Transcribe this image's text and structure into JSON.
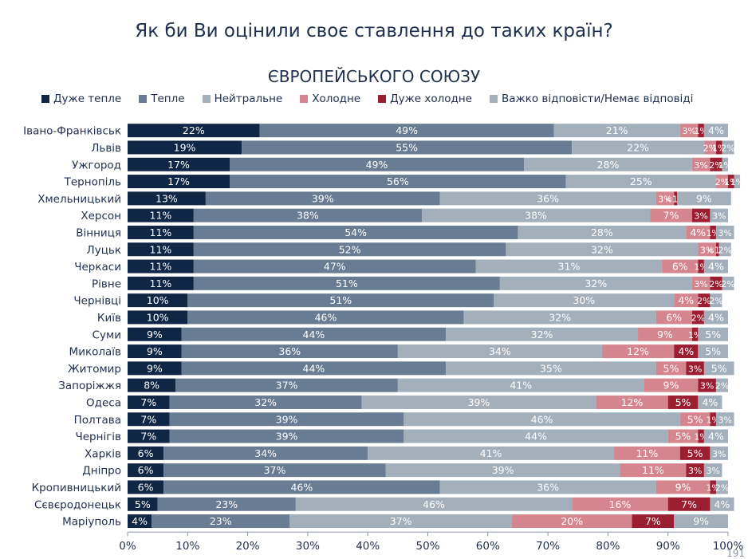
{
  "page": {
    "title": "Як би Ви оцінили своє ставлення до таких країн?",
    "page_number": "191"
  },
  "chart_data": {
    "type": "bar",
    "orientation": "horizontal",
    "stacked": true,
    "normalized": true,
    "title": "ЄВРОПЕЙСЬКОГО СОЮЗУ",
    "xlim": [
      0,
      100
    ],
    "x_ticks": [
      "0%",
      "10%",
      "20%",
      "30%",
      "40%",
      "50%",
      "60%",
      "70%",
      "80%",
      "90%",
      "100%"
    ],
    "legend_position": "top",
    "categories": [
      "Івано-Франківськ",
      "Львів",
      "Ужгород",
      "Тернопіль",
      "Хмельницький",
      "Херсон",
      "Вінниця",
      "Луцьк",
      "Черкаси",
      "Рівне",
      "Чернівці",
      "Київ",
      "Суми",
      "Миколаїв",
      "Житомир",
      "Запоріжжя",
      "Одеса",
      "Полтава",
      "Чернігів",
      "Харків",
      "Дніпро",
      "Кропивницький",
      "Сєвєродонецьк",
      "Маріуполь"
    ],
    "series": [
      {
        "name": "Дуже тепле",
        "color": "#0f2645",
        "label_color": "#ffffff",
        "values": [
          22,
          19,
          17,
          17,
          13,
          11,
          11,
          11,
          11,
          11,
          10,
          10,
          9,
          9,
          9,
          8,
          7,
          7,
          7,
          6,
          6,
          6,
          5,
          4
        ],
        "labels": [
          "22%",
          "19%",
          "17%",
          "17%",
          "13%",
          "11%",
          "11%",
          "11%",
          "11%",
          "11%",
          "10%",
          "10%",
          "9%",
          "9%",
          "9%",
          "8%",
          "7%",
          "7%",
          "7%",
          "6%",
          "6%",
          "6%",
          "5%",
          "4%"
        ]
      },
      {
        "name": "Тепле",
        "color": "#687c93",
        "label_color": "#ffffff",
        "values": [
          49,
          55,
          49,
          56,
          39,
          38,
          54,
          52,
          47,
          51,
          51,
          46,
          44,
          36,
          44,
          37,
          32,
          39,
          39,
          34,
          37,
          46,
          23,
          23
        ],
        "labels": [
          "49%",
          "55%",
          "49%",
          "56%",
          "39%",
          "38%",
          "54%",
          "52%",
          "47%",
          "51%",
          "51%",
          "46%",
          "44%",
          "36%",
          "44%",
          "37%",
          "32%",
          "39%",
          "39%",
          "34%",
          "37%",
          "46%",
          "23%",
          "23%"
        ]
      },
      {
        "name": "Нейтральне",
        "color": "#a3afbb",
        "label_color": "#ffffff",
        "values": [
          21,
          22,
          28,
          25,
          36,
          38,
          28,
          32,
          31,
          32,
          30,
          32,
          32,
          34,
          35,
          41,
          39,
          46,
          44,
          41,
          39,
          36,
          46,
          37
        ],
        "labels": [
          "21%",
          "22%",
          "28%",
          "25%",
          "36%",
          "38%",
          "28%",
          "32%",
          "31%",
          "32%",
          "30%",
          "32%",
          "32%",
          "34%",
          "35%",
          "41%",
          "39%",
          "46%",
          "44%",
          "41%",
          "39%",
          "36%",
          "46%",
          "37%"
        ]
      },
      {
        "name": "Холодне",
        "color": "#d5858e",
        "label_color": "#ffffff",
        "values": [
          3,
          2,
          3,
          2,
          3,
          7,
          4,
          3,
          6,
          3,
          4,
          6,
          9,
          12,
          5,
          9,
          12,
          5,
          5,
          11,
          11,
          9,
          16,
          20
        ],
        "labels": [
          "3%",
          "2%",
          "3%",
          "2%",
          "3%",
          "7%",
          "4%",
          "3%",
          "6%",
          "3%",
          "4%",
          "6%",
          "9%",
          "12%",
          "5%",
          "9%",
          "12%",
          "5%",
          "5%",
          "11%",
          "11%",
          "9%",
          "16%",
          "20%"
        ]
      },
      {
        "name": "Дуже холодне",
        "color": "#9b1f31",
        "label_color": "#ffffff",
        "values": [
          1,
          1,
          2,
          1,
          0.5,
          3,
          1,
          0.5,
          1,
          2,
          2,
          2,
          1,
          4,
          3,
          3,
          5,
          1,
          1,
          5,
          3,
          1,
          7,
          7
        ],
        "labels": [
          "1%",
          "1%",
          "2%",
          "1%",
          "<1%",
          "3%",
          "1%",
          "<1%",
          "1%",
          "2%",
          "2%",
          "2%",
          "1%",
          "4%",
          "3%",
          "3%",
          "5%",
          "1%",
          "1%",
          "5%",
          "3%",
          "1%",
          "7%",
          "7%"
        ]
      },
      {
        "name": "Важко відповісти/Немає відповіді",
        "color": "#a3afbb",
        "label_color": "#ffffff",
        "values": [
          4,
          2,
          1,
          1,
          9,
          3,
          3,
          2,
          4,
          2,
          2,
          4,
          5,
          5,
          5,
          2,
          4,
          3,
          4,
          3,
          3,
          2,
          4,
          9
        ],
        "labels": [
          "4%",
          "2%",
          "1%",
          "1%",
          "9%",
          "3%",
          "3%",
          "2%",
          "4%",
          "2%",
          "2%",
          "4%",
          "5%",
          "5%",
          "5%",
          "2%",
          "4%",
          "3%",
          "4%",
          "3%",
          "3%",
          "2%",
          "4%",
          "9%"
        ]
      }
    ]
  }
}
